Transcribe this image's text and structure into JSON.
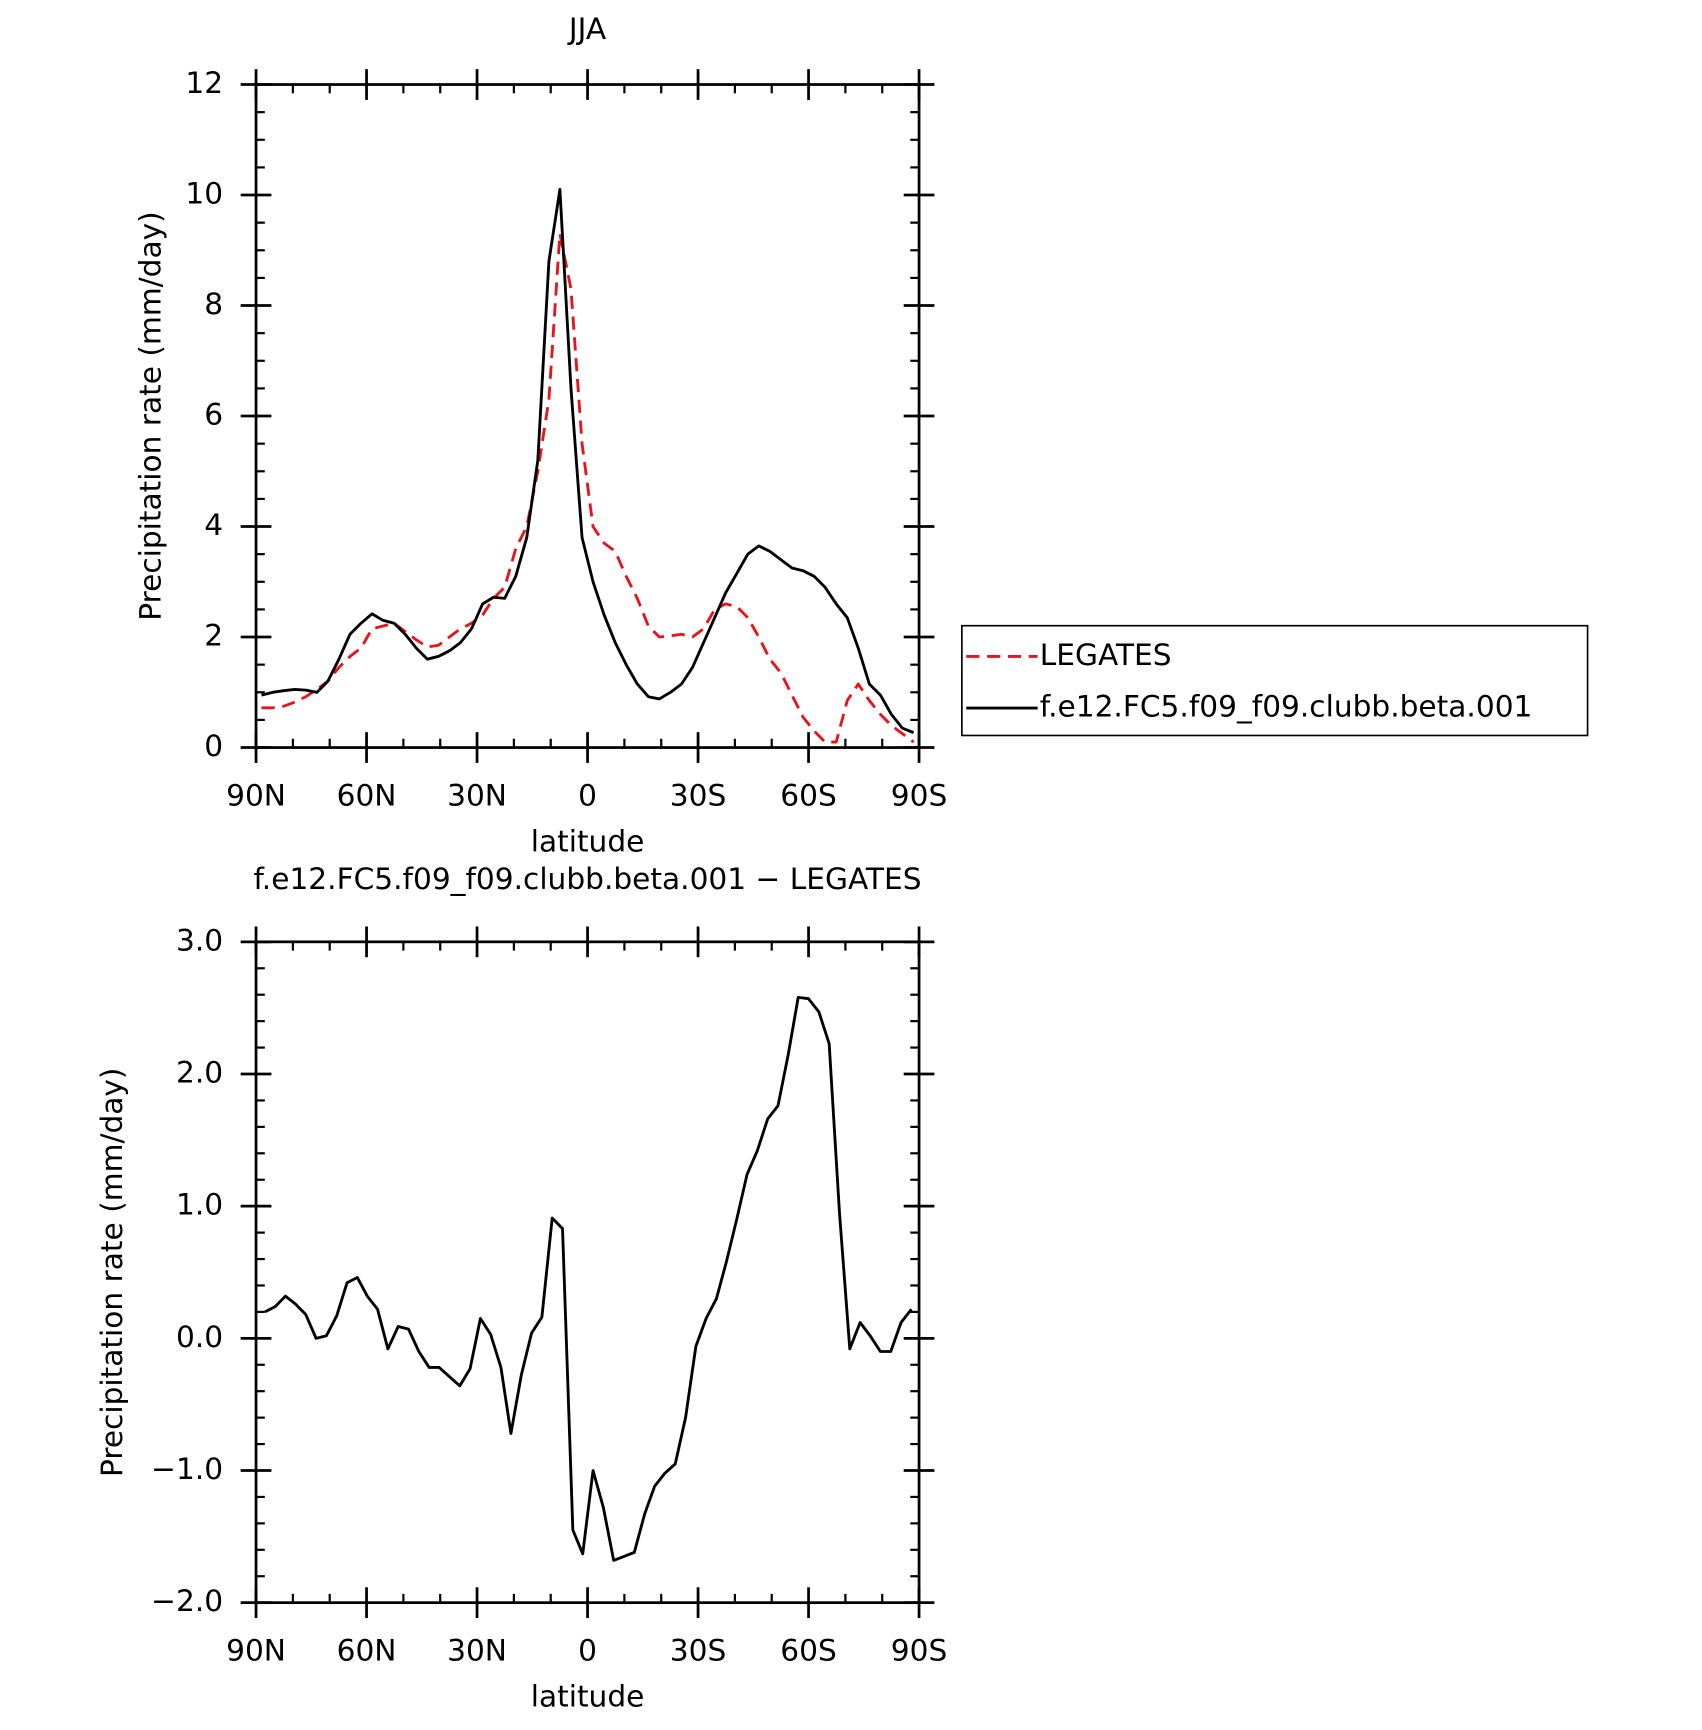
{
  "chart_data": [
    {
      "type": "line",
      "title": "JJA",
      "x_label": "latitude",
      "y_label": "Precipitation rate (mm/day)",
      "xlim": [
        90,
        -90
      ],
      "ylim": [
        0,
        12
      ],
      "xticks": [
        {
          "value": 90,
          "label": "90N"
        },
        {
          "value": 60,
          "label": "60N"
        },
        {
          "value": 30,
          "label": "30N"
        },
        0,
        {
          "value": -30,
          "label": "30S"
        },
        {
          "value": -60,
          "label": "60S"
        },
        {
          "value": -90,
          "label": "90S"
        }
      ],
      "xminorticks": [
        80,
        70,
        50,
        40,
        20,
        10,
        -10,
        -20,
        -40,
        -50,
        -70,
        -80
      ],
      "yticks": [
        0,
        2,
        4,
        6,
        8,
        10,
        12
      ],
      "yminorticks": [
        0.5,
        1,
        1.5,
        2.5,
        3,
        3.5,
        4.5,
        5,
        5.5,
        6.5,
        7,
        7.5,
        8.5,
        9,
        9.5,
        10.5,
        11,
        11.5
      ],
      "legend": "right",
      "x": [
        88.5,
        85.5,
        82.5,
        79.5,
        76.5,
        73.5,
        70.5,
        67.5,
        64.5,
        61.5,
        58.5,
        55.5,
        52.5,
        49.5,
        46.5,
        43.5,
        40.5,
        37.5,
        34.5,
        31.5,
        28.5,
        25.5,
        22.5,
        19.5,
        16.5,
        13.5,
        10.5,
        7.5,
        4.5,
        1.5,
        -1.5,
        -4.5,
        -7.5,
        -10.5,
        -13.5,
        -16.5,
        -19.5,
        -22.5,
        -25.5,
        -28.5,
        -31.5,
        -34.5,
        -37.5,
        -40.5,
        -43.5,
        -46.5,
        -49.5,
        -52.5,
        -55.5,
        -58.5,
        -61.5,
        -64.5,
        -67.5,
        -70.5,
        -73.5,
        -76.5,
        -79.5,
        -82.5,
        -85.5,
        -88.5
      ],
      "series": [
        {
          "name": "LEGATES",
          "color": "#e8141a",
          "line_style": "dashed",
          "values": [
            0.72,
            0.72,
            0.75,
            0.82,
            0.92,
            1.05,
            1.2,
            1.45,
            1.65,
            1.8,
            2.15,
            2.2,
            2.25,
            2.1,
            1.95,
            1.82,
            1.85,
            2.0,
            2.15,
            2.25,
            2.4,
            2.7,
            2.9,
            3.6,
            4.0,
            5.0,
            6.3,
            9.3,
            8.3,
            5.5,
            4.0,
            3.7,
            3.55,
            3.1,
            2.7,
            2.2,
            2.0,
            2.02,
            2.05,
            2.0,
            2.15,
            2.5,
            2.6,
            2.55,
            2.35,
            2.0,
            1.6,
            1.35,
            0.95,
            0.55,
            0.3,
            0.1,
            0.1,
            0.85,
            1.15,
            0.85,
            0.6,
            0.4,
            0.25,
            0.1
          ]
        },
        {
          "name": "f.e12.FC5.f09_f09.clubb.beta.001",
          "color": "#000000",
          "line_style": "solid",
          "values": [
            0.95,
            1.0,
            1.03,
            1.05,
            1.04,
            1.0,
            1.2,
            1.6,
            2.05,
            2.25,
            2.42,
            2.3,
            2.25,
            2.05,
            1.8,
            1.6,
            1.65,
            1.75,
            1.9,
            2.15,
            2.6,
            2.72,
            2.7,
            3.1,
            3.8,
            5.2,
            8.8,
            10.1,
            6.5,
            3.8,
            3.0,
            2.4,
            1.9,
            1.5,
            1.15,
            0.92,
            0.88,
            1.0,
            1.15,
            1.45,
            1.9,
            2.35,
            2.8,
            3.15,
            3.5,
            3.65,
            3.55,
            3.4,
            3.25,
            3.2,
            3.1,
            2.9,
            2.6,
            2.35,
            1.8,
            1.15,
            0.95,
            0.6,
            0.35,
            0.27
          ]
        }
      ]
    },
    {
      "type": "line",
      "title": "f.e12.FC5.f09_f09.clubb.beta.001 − LEGATES",
      "x_label": "latitude",
      "y_label": "Precipitation rate (mm/day)",
      "xlim": [
        90,
        -90
      ],
      "ylim": [
        -2,
        3
      ],
      "xticks": [
        {
          "value": 90,
          "label": "90N"
        },
        {
          "value": 60,
          "label": "60N"
        },
        {
          "value": 30,
          "label": "30N"
        },
        0,
        {
          "value": -30,
          "label": "30S"
        },
        {
          "value": -60,
          "label": "60S"
        },
        {
          "value": -90,
          "label": "90S"
        }
      ],
      "xminorticks": [
        80,
        70,
        50,
        40,
        20,
        10,
        -10,
        -20,
        -40,
        -50,
        -70,
        -80
      ],
      "yticks": [
        {
          "value": 3,
          "label": "3.0"
        },
        {
          "value": 2,
          "label": "2.0"
        },
        {
          "value": 1,
          "label": "1.0"
        },
        {
          "value": 0,
          "label": "0.0"
        },
        {
          "value": -1,
          "label": "−1.0"
        },
        {
          "value": -2,
          "label": "−2.0"
        }
      ],
      "yminorticks": [
        2.8,
        2.6,
        2.4,
        2.2,
        1.8,
        1.6,
        1.4,
        1.2,
        0.8,
        0.6,
        0.4,
        0.2,
        -0.2,
        -0.4,
        -0.6,
        -0.8,
        -1.2,
        -1.4,
        -1.6,
        -1.8
      ],
      "color": "#000000",
      "x": [
        87.6,
        84.8,
        82.0,
        79.3,
        76.5,
        73.7,
        70.9,
        68.1,
        65.3,
        62.5,
        59.8,
        57.0,
        54.2,
        51.4,
        48.6,
        45.8,
        43.0,
        40.3,
        37.5,
        34.7,
        31.9,
        29.1,
        26.3,
        23.5,
        20.8,
        18.0,
        15.2,
        12.4,
        9.6,
        6.8,
        4.0,
        1.3,
        -1.5,
        -4.3,
        -7.1,
        -9.9,
        -12.7,
        -15.5,
        -18.2,
        -21.0,
        -23.8,
        -26.6,
        -29.4,
        -32.2,
        -35.0,
        -37.7,
        -40.5,
        -43.3,
        -46.1,
        -48.9,
        -51.7,
        -54.5,
        -57.2,
        -60.0,
        -62.8,
        -65.6,
        -68.4,
        -71.2,
        -74.0,
        -76.7,
        -79.5,
        -82.3,
        -85.1,
        -87.9
      ],
      "values": [
        0.2,
        0.24,
        0.32,
        0.26,
        0.18,
        0.0,
        0.02,
        0.17,
        0.42,
        0.46,
        0.32,
        0.22,
        -0.08,
        0.09,
        0.07,
        -0.1,
        -0.22,
        -0.22,
        -0.29,
        -0.36,
        -0.23,
        0.15,
        0.03,
        -0.22,
        -0.72,
        -0.28,
        0.04,
        0.16,
        0.91,
        0.83,
        -1.45,
        -1.63,
        -1.0,
        -1.28,
        -1.68,
        -1.65,
        -1.62,
        -1.33,
        -1.12,
        -1.02,
        -0.95,
        -0.6,
        -0.06,
        0.15,
        0.3,
        0.58,
        0.9,
        1.24,
        1.42,
        1.66,
        1.76,
        2.15,
        2.58,
        2.57,
        2.47,
        2.23,
        0.95,
        -0.08,
        0.12,
        0.02,
        -0.1,
        -0.1,
        0.12,
        0.22
      ]
    }
  ]
}
